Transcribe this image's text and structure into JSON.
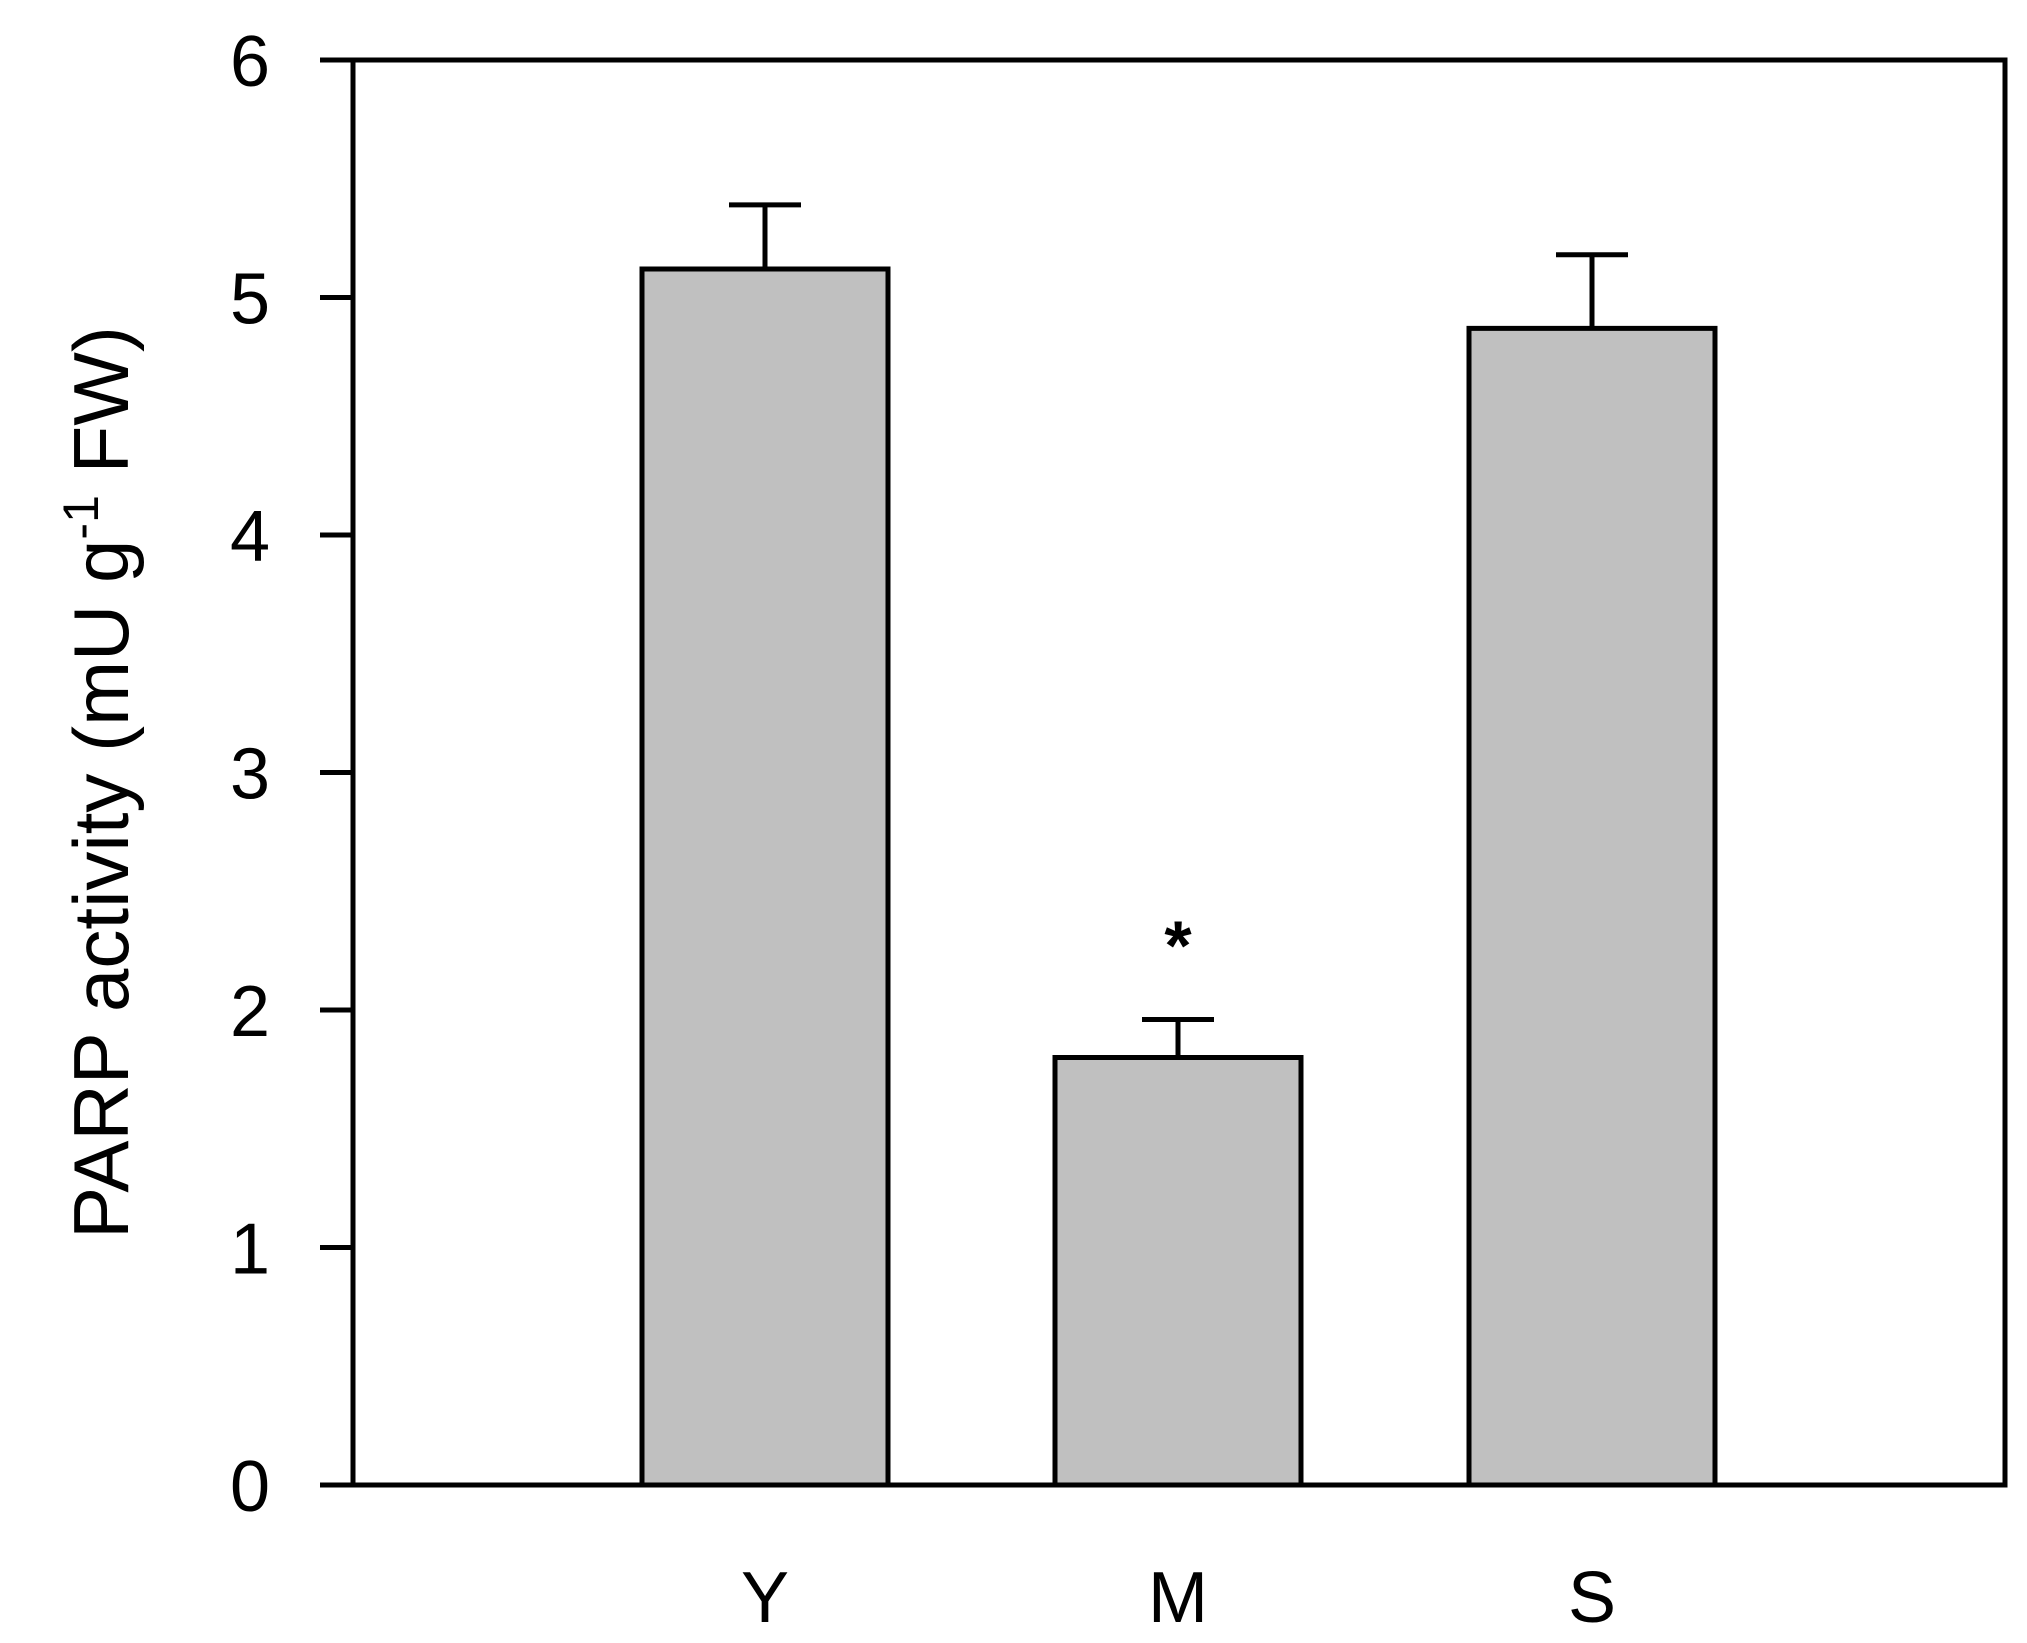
{
  "chart_data": {
    "type": "bar",
    "categories": [
      "Y",
      "M",
      "S"
    ],
    "values": [
      5.12,
      1.8,
      4.87
    ],
    "errors": [
      0.27,
      0.16,
      0.31
    ],
    "ylabel": "PARP activity (mU g",
    "ylabel_superscript": "-1",
    "ylabel_suffix": " FW)",
    "xlabel": "",
    "ylim": [
      0,
      6
    ],
    "yticks": [
      "0",
      "1",
      "2",
      "3",
      "4",
      "5",
      "6"
    ],
    "annotations": [
      {
        "category": "M",
        "text": "*"
      }
    ],
    "grid": false,
    "legend": "none",
    "colors": {
      "bar_fill": "#c0c0c0",
      "bar_stroke": "#000000",
      "axis": "#000000"
    }
  }
}
